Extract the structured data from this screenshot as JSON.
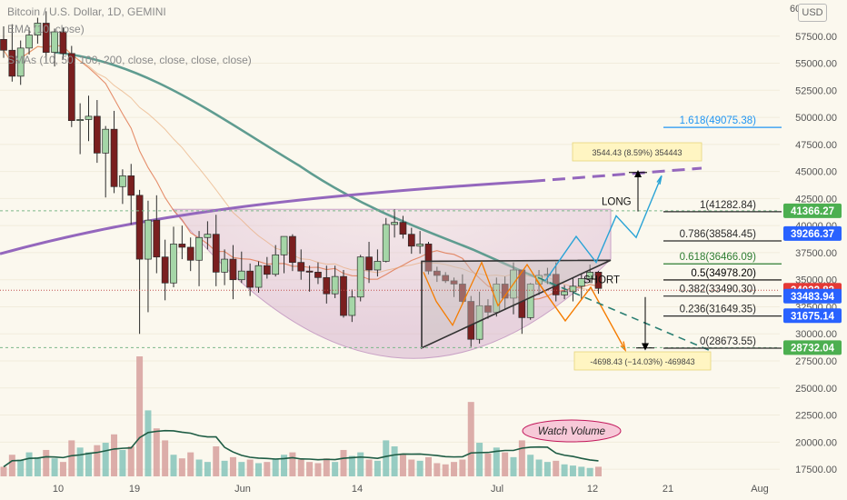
{
  "header": {
    "symbol": "Bitcoin / U.S. Dollar, 1D, GEMINI",
    "ema_label": "EMA (10, close)",
    "sma_label": "SMAs (10, 50, 100, 200, close, close, close, close)",
    "currency_button": "USD"
  },
  "chart_data": {
    "type": "candlestick",
    "ylim": [
      16500,
      60000
    ],
    "y_ticks": [
      17500,
      20000,
      22500,
      25000,
      27500,
      30000,
      32500,
      35000,
      37500,
      40000,
      42500,
      45000,
      47500,
      50000,
      52500,
      55000,
      57500
    ],
    "y_top_label": "60",
    "x_ticks": [
      "10",
      "19",
      "Jun",
      "14",
      "Jul",
      "12",
      "21",
      "Aug"
    ],
    "candles": [
      [
        57200,
        58400,
        55500,
        56200
      ],
      [
        56200,
        58600,
        53300,
        53800
      ],
      [
        53800,
        57100,
        53000,
        56400
      ],
      [
        56400,
        58300,
        55800,
        57600
      ],
      [
        57600,
        59200,
        56800,
        58700
      ],
      [
        58700,
        59800,
        55100,
        56000
      ],
      [
        56000,
        58200,
        54700,
        57900
      ],
      [
        57900,
        58300,
        55400,
        55900
      ],
      [
        55900,
        56600,
        49100,
        49700
      ],
      [
        49700,
        51300,
        46600,
        49800
      ],
      [
        49800,
        52000,
        47800,
        50100
      ],
      [
        50100,
        51600,
        45800,
        46700
      ],
      [
        46700,
        49200,
        42600,
        48900
      ],
      [
        48900,
        50600,
        43000,
        43600
      ],
      [
        43600,
        45200,
        42000,
        44600
      ],
      [
        44600,
        45700,
        40100,
        42800
      ],
      [
        42800,
        43300,
        30000,
        36900
      ],
      [
        36900,
        42300,
        32000,
        40500
      ],
      [
        40500,
        42800,
        35600,
        37100
      ],
      [
        37100,
        38700,
        33100,
        34700
      ],
      [
        34700,
        39900,
        34300,
        38300
      ],
      [
        38300,
        40000,
        36900,
        38000
      ],
      [
        38000,
        38900,
        35800,
        36800
      ],
      [
        36800,
        39500,
        34400,
        38900
      ],
      [
        38900,
        40400,
        37800,
        39200
      ],
      [
        39200,
        41000,
        34400,
        35700
      ],
      [
        35700,
        37800,
        34500,
        36900
      ],
      [
        36900,
        38200,
        33200,
        35000
      ],
      [
        35000,
        37600,
        34700,
        35800
      ],
      [
        35800,
        36500,
        33500,
        34300
      ],
      [
        34300,
        36700,
        33800,
        36300
      ],
      [
        36300,
        37100,
        35100,
        35500
      ],
      [
        35500,
        38200,
        35300,
        37300
      ],
      [
        37300,
        39000,
        35600,
        39000
      ],
      [
        39000,
        39200,
        35800,
        36600
      ],
      [
        36600,
        37800,
        35000,
        35800
      ],
      [
        35800,
        36300,
        33900,
        35700
      ],
      [
        35700,
        36600,
        34600,
        35200
      ],
      [
        35200,
        36300,
        32800,
        33700
      ],
      [
        33700,
        36300,
        33300,
        35300
      ],
      [
        35300,
        35900,
        31500,
        31700
      ],
      [
        31700,
        34100,
        31100,
        33400
      ],
      [
        33400,
        37300,
        33000,
        37100
      ],
      [
        37100,
        38500,
        34700,
        35900
      ],
      [
        35900,
        37800,
        35300,
        36700
      ],
      [
        36700,
        40700,
        36600,
        40100
      ],
      [
        40100,
        41500,
        38900,
        40300
      ],
      [
        40300,
        40900,
        38800,
        39200
      ],
      [
        39200,
        39800,
        37400,
        38100
      ],
      [
        38100,
        39500,
        37400,
        38300
      ],
      [
        38300,
        38500,
        35500,
        35800
      ],
      [
        35800,
        36200,
        34800,
        35400
      ],
      [
        35400,
        35700,
        34700,
        34900
      ],
      [
        34900,
        35200,
        33400,
        34600
      ],
      [
        34600,
        35500,
        32700,
        33000
      ],
      [
        33000,
        33500,
        28800,
        29500
      ],
      [
        29500,
        33900,
        29100,
        32600
      ],
      [
        32600,
        33200,
        31400,
        32000
      ],
      [
        32000,
        35200,
        31600,
        34600
      ],
      [
        34600,
        35300,
        32200,
        33300
      ],
      [
        33300,
        36600,
        31800,
        35900
      ],
      [
        35900,
        35800,
        30000,
        31500
      ],
      [
        31500,
        34700,
        31300,
        34600
      ],
      [
        34600,
        35900,
        33600,
        35400
      ],
      [
        35400,
        36100,
        34600,
        35500
      ],
      [
        35500,
        36600,
        33000,
        33600
      ],
      [
        33600,
        34500,
        33200,
        33900
      ],
      [
        33900,
        35200,
        33000,
        34400
      ],
      [
        34400,
        35500,
        33200,
        35100
      ],
      [
        35100,
        36400,
        34700,
        35700
      ],
      [
        35700,
        35800,
        33700,
        34200
      ]
    ],
    "fib_levels": [
      {
        "label": "1.618(49075.38)",
        "value": 49075.38,
        "color": "#2196f3"
      },
      {
        "label": "1(41282.84)",
        "value": 41282.84,
        "color": "#2a2a2a"
      },
      {
        "label": "0.786(38584.45)",
        "value": 38584.45,
        "color": "#2a2a2a"
      },
      {
        "label": "0.618(36466.09)",
        "value": 36466.09,
        "color": "#2e7d32"
      },
      {
        "label": "0.5(34978.20)",
        "value": 34978.2,
        "color": "#000000"
      },
      {
        "label": "0.382(33490.30)",
        "value": 33490.3,
        "color": "#2a2a2a"
      },
      {
        "label": "0.236(31649.35)",
        "value": 31649.35,
        "color": "#2a2a2a"
      },
      {
        "label": "0(28673.55)",
        "value": 28673.55,
        "color": "#2a2a2a"
      }
    ],
    "price_tags": [
      {
        "label": "41366.27",
        "value": 41366.27,
        "color": "#4caf50"
      },
      {
        "label": "39266.37",
        "value": 39266.37,
        "color": "#2962ff"
      },
      {
        "label": "34032.83",
        "value": 34032.83,
        "color": "#e53935"
      },
      {
        "label": "33483.94",
        "value": 33483.94,
        "color": "#2962ff"
      },
      {
        "label": "31675.14",
        "value": 31675.14,
        "color": "#2962ff"
      },
      {
        "label": "28732.04",
        "value": 28732.04,
        "color": "#4caf50"
      }
    ],
    "annotations": {
      "long_label": "LONG",
      "short_label": "SHORT",
      "watch_volume": "Watch Volume",
      "long_measure": "3544.43 (8.59%) 354443",
      "short_measure": "-4698.43 (−14.03%) -469843"
    },
    "volume_scale_max": 100
  }
}
